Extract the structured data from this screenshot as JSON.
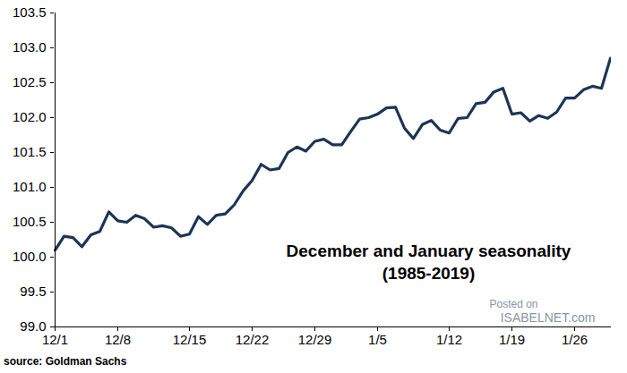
{
  "chart_data": {
    "type": "line",
    "annotations": [
      "December and January seasonality",
      "(1985-2019)"
    ],
    "source": "source: Goldman Sachs",
    "watermark": [
      "Posted on",
      "ISABELNET.com"
    ],
    "categories": [
      "12/1",
      null,
      null,
      null,
      null,
      null,
      null,
      "12/8",
      null,
      null,
      null,
      null,
      null,
      null,
      null,
      "12/15",
      null,
      null,
      null,
      null,
      null,
      null,
      "12/22",
      null,
      null,
      null,
      null,
      null,
      null,
      "12/29",
      null,
      null,
      null,
      null,
      null,
      null,
      "1/5",
      null,
      null,
      null,
      null,
      null,
      null,
      null,
      "1/12",
      null,
      null,
      null,
      null,
      null,
      null,
      "1/19",
      null,
      null,
      null,
      null,
      null,
      null,
      "1/26",
      null,
      null,
      null,
      null
    ],
    "values": [
      100.1,
      100.3,
      100.28,
      100.15,
      100.32,
      100.37,
      100.65,
      100.52,
      100.5,
      100.6,
      100.55,
      100.43,
      100.45,
      100.42,
      100.3,
      100.33,
      100.58,
      100.47,
      100.6,
      100.62,
      100.75,
      100.95,
      101.1,
      101.33,
      101.25,
      101.27,
      101.5,
      101.58,
      101.52,
      101.66,
      101.69,
      101.61,
      101.61,
      101.8,
      101.98,
      102.0,
      102.05,
      102.14,
      102.15,
      101.85,
      101.7,
      101.9,
      101.96,
      101.82,
      101.78,
      101.99,
      102.0,
      102.2,
      102.22,
      102.37,
      102.42,
      102.05,
      102.07,
      101.95,
      102.03,
      101.99,
      102.08,
      102.28,
      102.28,
      102.4,
      102.45,
      102.42,
      102.85
    ],
    "color": "#1c3557",
    "ylim": [
      99.0,
      103.5
    ],
    "yticks": [
      {
        "value": 99.0,
        "label": "99.0"
      },
      99.5,
      {
        "value": 100.0,
        "label": "100.0"
      },
      100.5,
      {
        "value": 101.0,
        "label": "101.0"
      },
      101.5,
      {
        "value": 102.0,
        "label": "102.0"
      },
      102.5,
      {
        "value": 103.0,
        "label": "103.0"
      },
      103.5
    ],
    "grid": false
  }
}
